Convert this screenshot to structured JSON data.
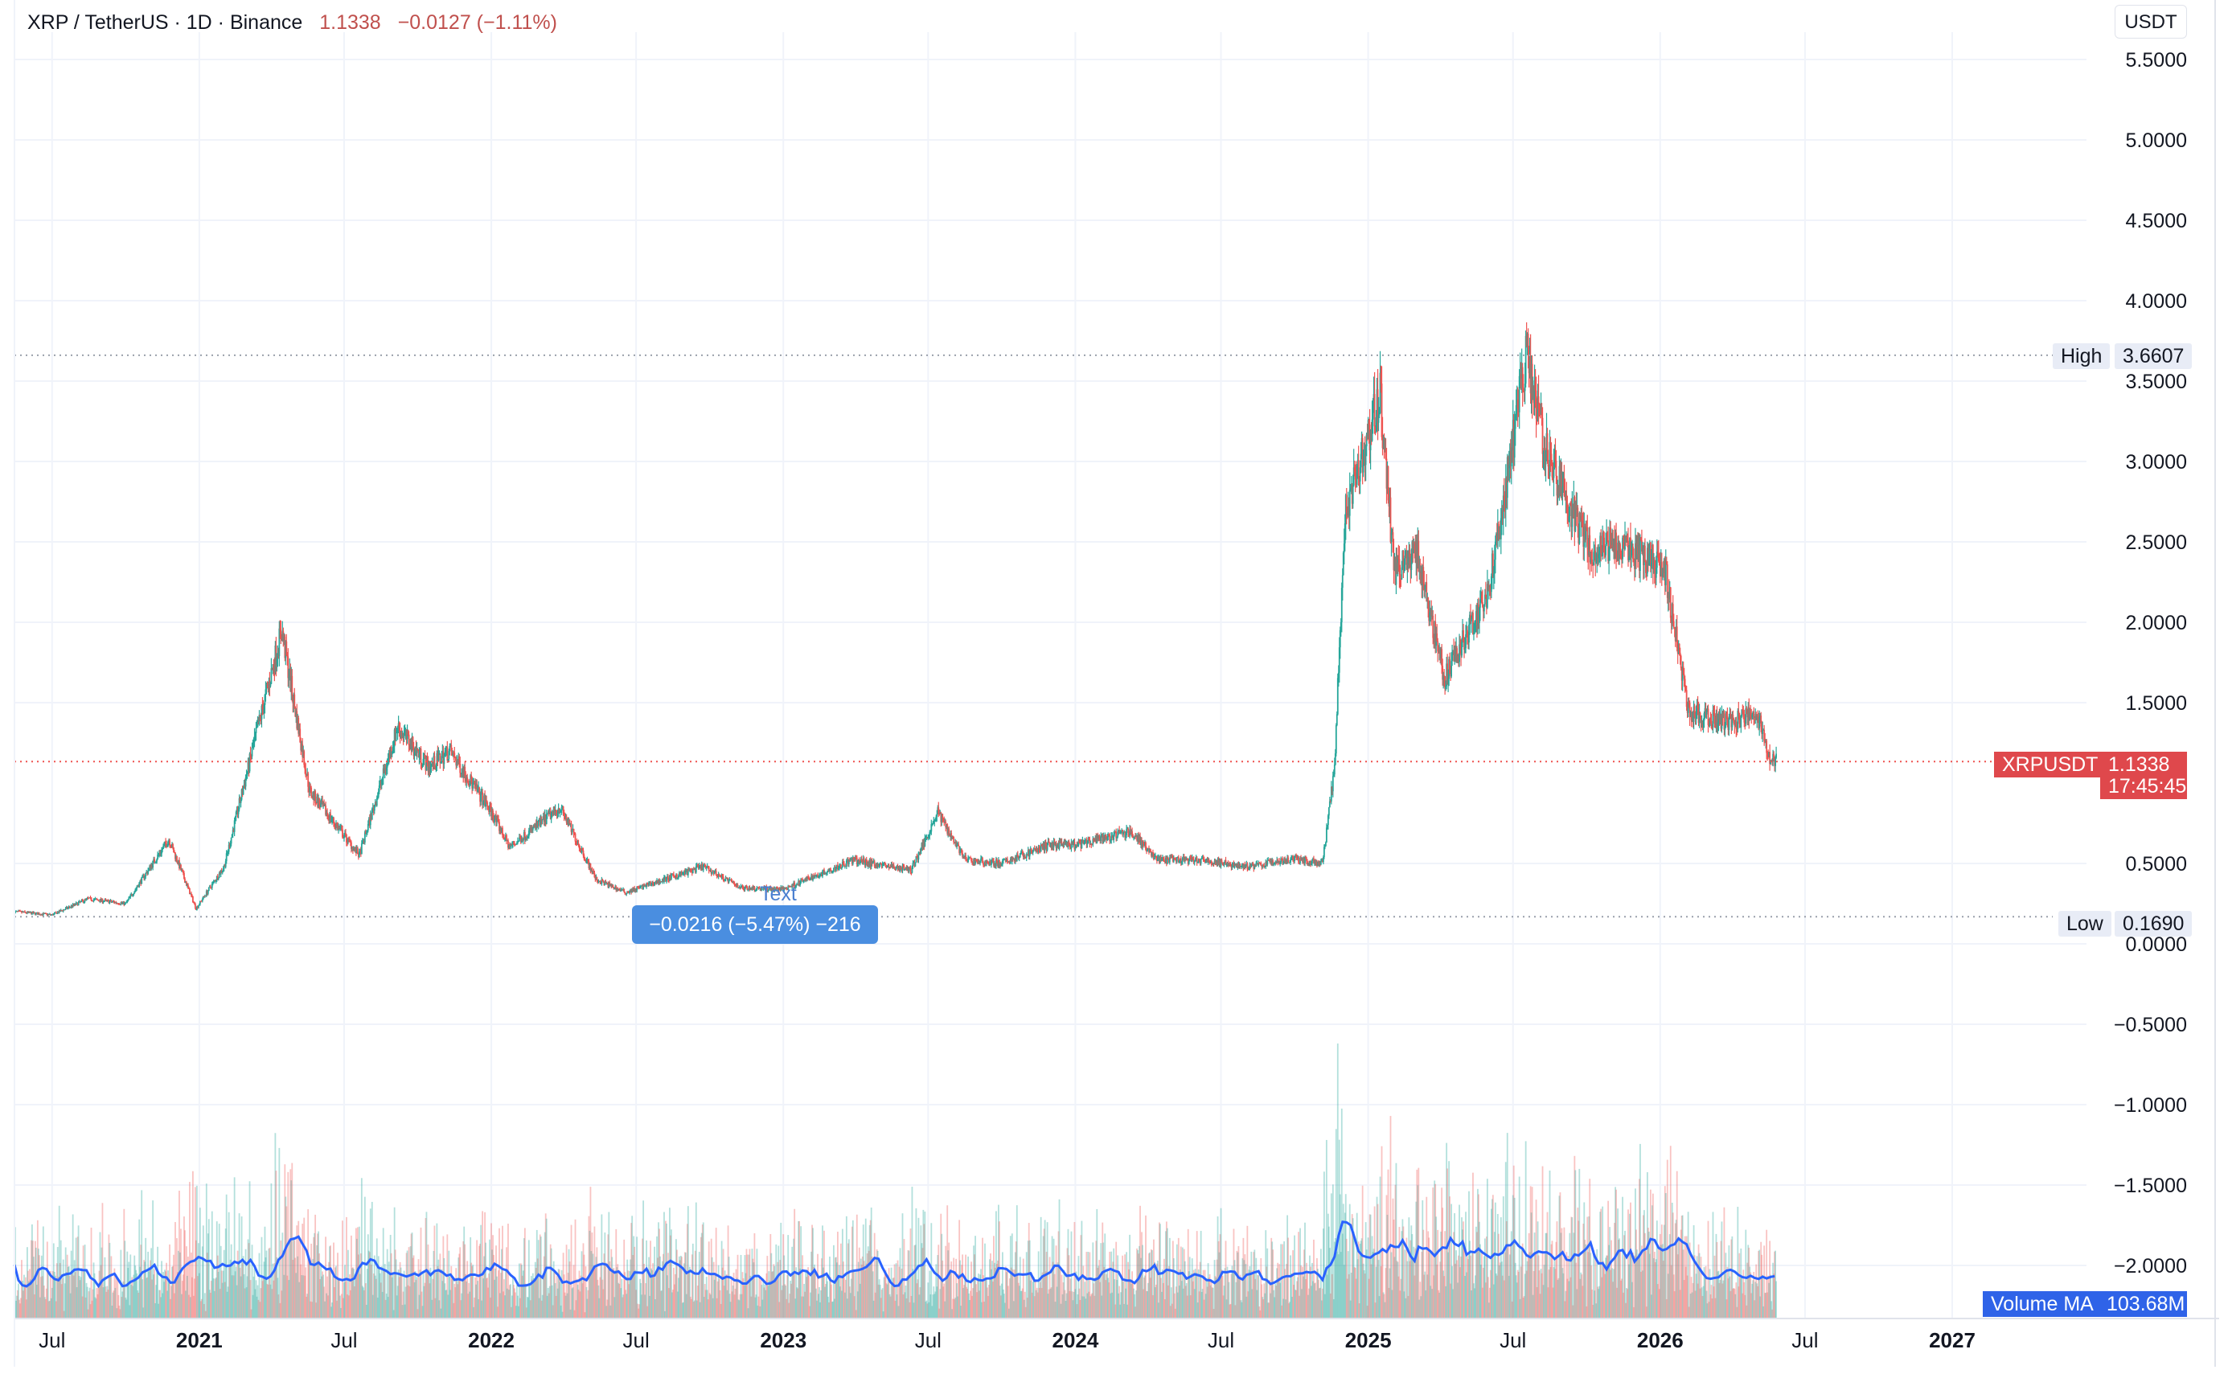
{
  "header": {
    "symbol": "XRP / TetherUS · 1D · Binance",
    "price": "1.1338",
    "change": "−0.0127 (−1.11%)"
  },
  "currency_button": "USDT",
  "chart_data": {
    "type": "candlestick",
    "y_axis_ticks": [
      "5.5000",
      "5.0000",
      "4.5000",
      "4.0000",
      "3.5000",
      "3.0000",
      "2.5000",
      "2.0000",
      "1.5000",
      "0.5000",
      "0.0000",
      "−0.5000",
      "−1.0000",
      "−1.5000",
      "−2.0000"
    ],
    "ylim": [
      -2.3,
      5.7
    ],
    "x_axis_labels": [
      "Jul",
      "2021",
      "Jul",
      "2022",
      "Jul",
      "2023",
      "Jul",
      "2024",
      "Jul",
      "2025",
      "Jul",
      "2026",
      "Jul",
      "2027"
    ],
    "x_axis_bold": [
      false,
      true,
      false,
      true,
      false,
      true,
      false,
      true,
      false,
      true,
      false,
      true,
      false,
      true
    ],
    "price_series": {
      "dates": [
        "2020-05-15",
        "2020-07-01",
        "2020-08-15",
        "2020-10-01",
        "2020-11-24",
        "2020-12-28",
        "2021-02-01",
        "2021-04-14",
        "2021-05-01",
        "2021-05-19",
        "2021-07-20",
        "2021-09-06",
        "2021-10-15",
        "2021-11-10",
        "2022-01-01",
        "2022-01-24",
        "2022-03-28",
        "2022-05-12",
        "2022-06-18",
        "2022-09-23",
        "2022-11-09",
        "2023-01-01",
        "2023-03-29",
        "2023-06-10",
        "2023-07-13",
        "2023-08-17",
        "2023-10-01",
        "2023-12-01",
        "2024-01-01",
        "2024-03-11",
        "2024-04-13",
        "2024-06-01",
        "2024-08-05",
        "2024-10-01",
        "2024-11-05",
        "2024-11-20",
        "2024-12-03",
        "2025-01-16",
        "2025-02-03",
        "2025-03-02",
        "2025-04-07",
        "2025-06-01",
        "2025-07-18",
        "2025-08-15",
        "2025-10-10",
        "2025-11-01",
        "2026-01-06",
        "2026-02-05",
        "2026-03-15",
        "2026-04-14",
        "2026-05-01",
        "2026-05-20",
        "2026-05-26"
      ],
      "close": [
        0.2,
        0.18,
        0.28,
        0.25,
        0.65,
        0.22,
        0.48,
        1.95,
        1.45,
        0.95,
        0.55,
        1.35,
        1.1,
        1.2,
        0.82,
        0.6,
        0.85,
        0.4,
        0.32,
        0.48,
        0.35,
        0.34,
        0.52,
        0.46,
        0.82,
        0.52,
        0.5,
        0.62,
        0.61,
        0.7,
        0.52,
        0.52,
        0.48,
        0.53,
        0.5,
        1.1,
        2.7,
        3.4,
        2.3,
        2.45,
        1.65,
        2.2,
        3.66,
        3.0,
        2.4,
        2.5,
        2.35,
        1.45,
        1.38,
        1.4,
        1.45,
        1.13,
        1.1338
      ]
    },
    "volume_ma": {
      "label": "Volume MA",
      "value": "103.68M"
    },
    "high": {
      "label": "High",
      "value": "3.6607"
    },
    "low": {
      "label": "Low",
      "value": "0.1690"
    },
    "last": {
      "symbol": "XRPUSDT",
      "value": "1.1338",
      "countdown": "17:45:45"
    },
    "measure": {
      "label": "−0.0216 (−5.47%) −216",
      "text": "Text"
    },
    "colors": {
      "up": "#26a69a",
      "down": "#ef5350",
      "grid": "#f0f3fa",
      "volume_ma": "#2962ff",
      "last_line": "#f0b8b8"
    }
  }
}
